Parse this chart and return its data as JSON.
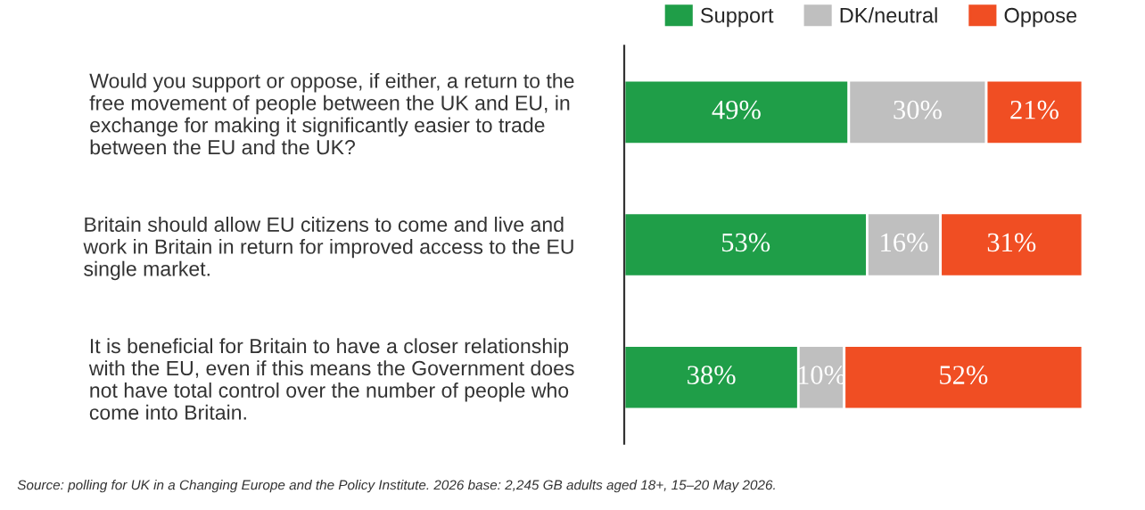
{
  "chart_data": {
    "type": "bar",
    "orientation": "horizontal",
    "stacked": true,
    "categories": [
      "Would you support or oppose, if either, a return to the\nfree movement of people between the UK and EU, in\nexchange for making it significantly easier to trade\nbetween the EU and the UK?",
      "Britain should allow EU citizens to come and live and\nwork in Britain in return for improved access to the EU\nsingle market.",
      "It is beneficial for Britain to have a closer relationship\nwith the EU, even if this means the Government does\nnot have total control over the number of people who\ncome into Britain."
    ],
    "series": [
      {
        "name": "Support",
        "color": "#1f9e48",
        "values": [
          49,
          53,
          38
        ],
        "value_labels": [
          "49%",
          "53%",
          "38%"
        ]
      },
      {
        "name": "DK/neutral",
        "color": "#bfbfbf",
        "values": [
          30,
          16,
          10
        ],
        "value_labels": [
          "30%",
          "16%",
          "10%"
        ]
      },
      {
        "name": "Oppose",
        "color": "#f04e23",
        "values": [
          21,
          31,
          52
        ],
        "value_labels": [
          "21%",
          "31%",
          "52%"
        ]
      }
    ],
    "legend": "top right",
    "annotations": [
      "Source: polling for UK in a Changing Europe and the Policy Institute. 2026 base: 2,245 GB adults aged 18+, 15–20 May 2026."
    ]
  }
}
